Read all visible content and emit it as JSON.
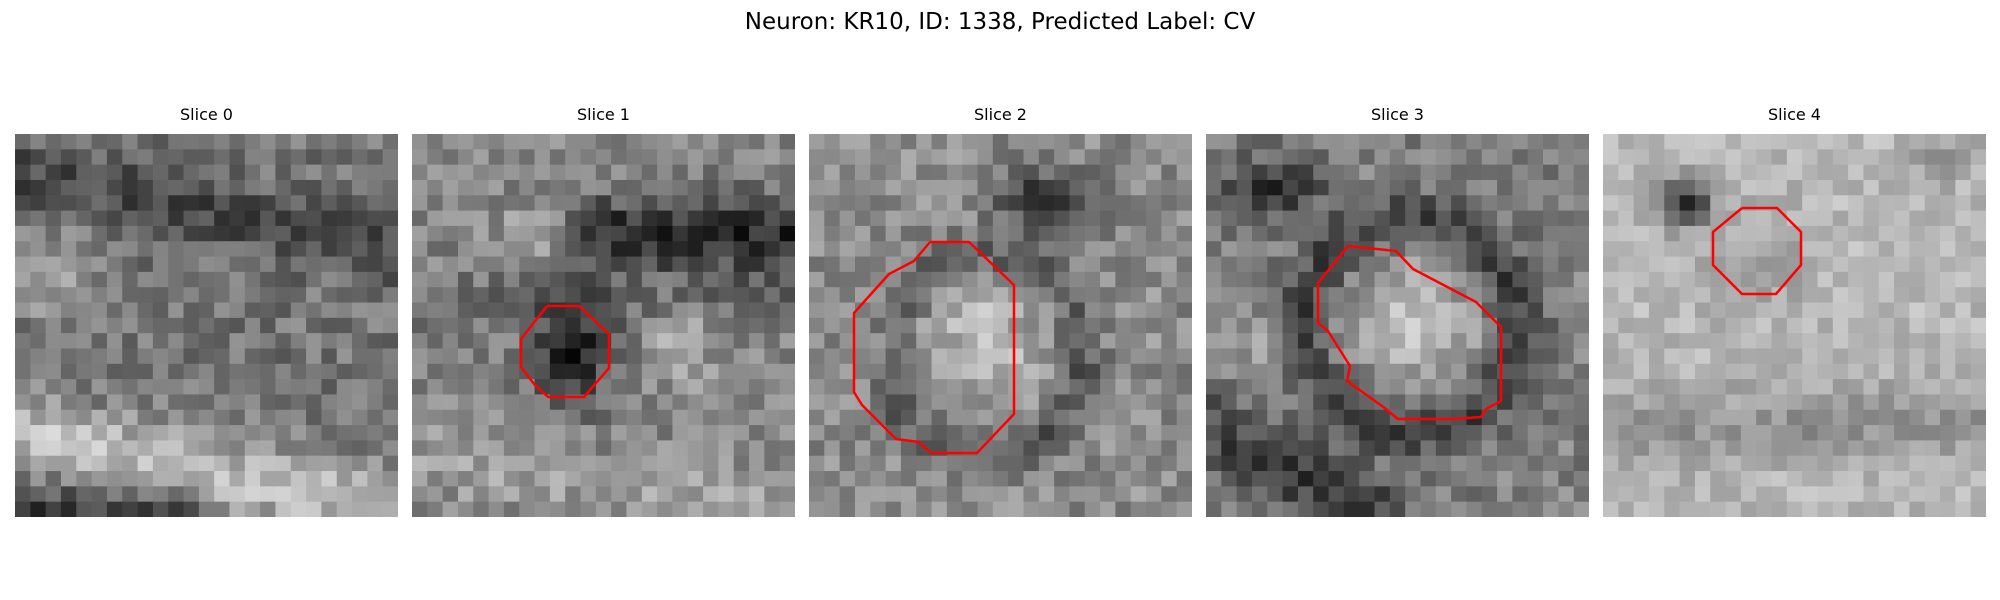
{
  "figure": {
    "title": "Neuron: KR10, ID: 1338, Predicted Label: CV"
  },
  "panels": [
    {
      "title": "Slice 0",
      "has_roi_outline": false,
      "roi_outline_color": "#ff0000"
    },
    {
      "title": "Slice 1",
      "has_roi_outline": true,
      "roi_outline_color": "#ff0000"
    },
    {
      "title": "Slice 2",
      "has_roi_outline": true,
      "roi_outline_color": "#ff0000"
    },
    {
      "title": "Slice 3",
      "has_roi_outline": true,
      "roi_outline_color": "#ff0000"
    },
    {
      "title": "Slice 4",
      "has_roi_outline": true,
      "roi_outline_color": "#ff0000"
    }
  ],
  "colormap": "grayscale"
}
